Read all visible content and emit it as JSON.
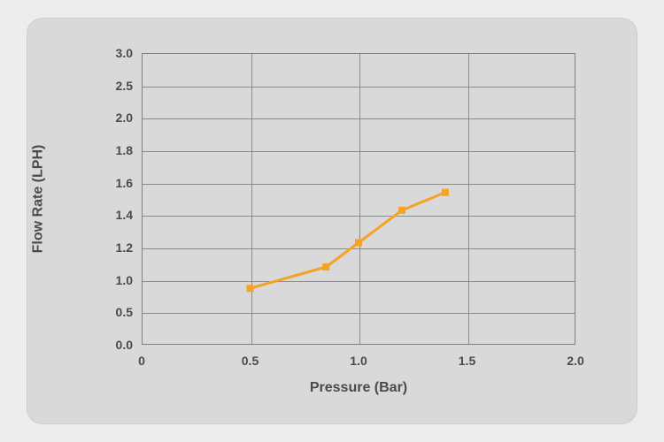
{
  "chart": {
    "type": "line",
    "x_label": "Pressure  (Bar)",
    "y_label": "Flow Rate  (LPH)",
    "label_fontsize": 16,
    "tick_fontsize": 14,
    "background_color": "#d9d9d9",
    "card_background": "#d9d9d9",
    "page_background": "#ededed",
    "border_color": "#808080",
    "grid_color": "#8a8a8a",
    "tick_label_color": "#4a4a4a",
    "series_color": "#f5a325",
    "line_width": 3,
    "marker_size": 7,
    "marker_style": "square",
    "xlim": [
      0,
      2.0
    ],
    "ylim": [
      0.0,
      3.0
    ],
    "xticks": [
      0,
      0.5,
      1.0,
      1.5,
      2.0
    ],
    "xtick_labels": [
      "0",
      "0.5",
      "1.0",
      "1.5",
      "2.0"
    ],
    "yticks": [
      0.0,
      0.5,
      1.0,
      1.2,
      1.4,
      1.6,
      1.8,
      2.0,
      2.5,
      3.0
    ],
    "ytick_labels": [
      "0.0",
      "0.5",
      "1.0",
      "1.2",
      "1.4",
      "1.6",
      "1.8",
      "2.0",
      "2.5",
      "3.0"
    ],
    "data": {
      "x": [
        0.5,
        0.85,
        1.0,
        1.2,
        1.4
      ],
      "y": [
        0.87,
        1.08,
        1.23,
        1.43,
        1.54
      ]
    }
  }
}
